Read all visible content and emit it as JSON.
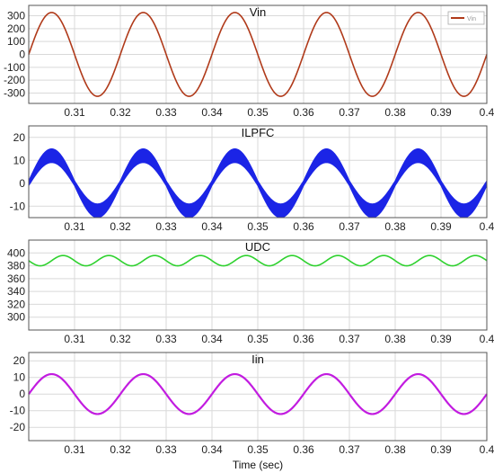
{
  "chart_data": [
    {
      "type": "line",
      "title": "Vin",
      "x_range": [
        0.3,
        0.4
      ],
      "ylim": [
        -380,
        380
      ],
      "x_ticks": [
        "0.31",
        "0.32",
        "0.33",
        "0.34",
        "0.35",
        "0.36",
        "0.37",
        "0.38",
        "0.39",
        "0.4"
      ],
      "y_ticks": [
        "300",
        "200",
        "100",
        "0",
        "-100",
        "-200",
        "-300"
      ],
      "grid": true,
      "legend": {
        "placement": "top-right",
        "entries": [
          "Vin"
        ]
      },
      "series": [
        {
          "name": "Vin",
          "color": "#b03a1a",
          "waveform": "sine",
          "amplitude": 325,
          "frequency_hz": 50,
          "phase_deg": 0,
          "offset": 0
        }
      ]
    },
    {
      "type": "line",
      "title": "ILPFC",
      "x_range": [
        0.3,
        0.4
      ],
      "ylim": [
        -15,
        25
      ],
      "x_ticks": [
        "0.31",
        "0.32",
        "0.33",
        "0.34",
        "0.35",
        "0.36",
        "0.37",
        "0.38",
        "0.39",
        "0.4"
      ],
      "y_ticks": [
        "20",
        "10",
        "0",
        "-10"
      ],
      "grid": true,
      "series": [
        {
          "color": "#1b24e6",
          "waveform": "rectified-sine-switching",
          "amplitude": 12,
          "frequency_hz": 50,
          "ripple_band": 3,
          "offset": 0
        }
      ]
    },
    {
      "type": "line",
      "title": "UDC",
      "x_range": [
        0.3,
        0.4
      ],
      "ylim": [
        280,
        420
      ],
      "x_ticks": [
        "0.31",
        "0.32",
        "0.33",
        "0.34",
        "0.35",
        "0.36",
        "0.37",
        "0.38",
        "0.39",
        "0.4"
      ],
      "y_ticks": [
        "400",
        "380",
        "360",
        "340",
        "320",
        "300"
      ],
      "grid": true,
      "series": [
        {
          "color": "#2fd12f",
          "waveform": "sine",
          "amplitude": 8,
          "frequency_hz": 100,
          "phase_deg": 180,
          "offset": 388
        }
      ]
    },
    {
      "type": "line",
      "title": "Iin",
      "x_range": [
        0.3,
        0.4
      ],
      "ylim": [
        -28,
        25
      ],
      "x_ticks": [
        "0.31",
        "0.32",
        "0.33",
        "0.34",
        "0.35",
        "0.36",
        "0.37",
        "0.38",
        "0.39",
        "0.4"
      ],
      "y_ticks": [
        "20",
        "10",
        "0",
        "-10",
        "-20"
      ],
      "xlabel": "Time (sec)",
      "grid": true,
      "series": [
        {
          "color": "#c21ce0",
          "waveform": "sine",
          "amplitude": 12,
          "frequency_hz": 50,
          "phase_deg": 0,
          "offset": 0
        }
      ]
    }
  ]
}
